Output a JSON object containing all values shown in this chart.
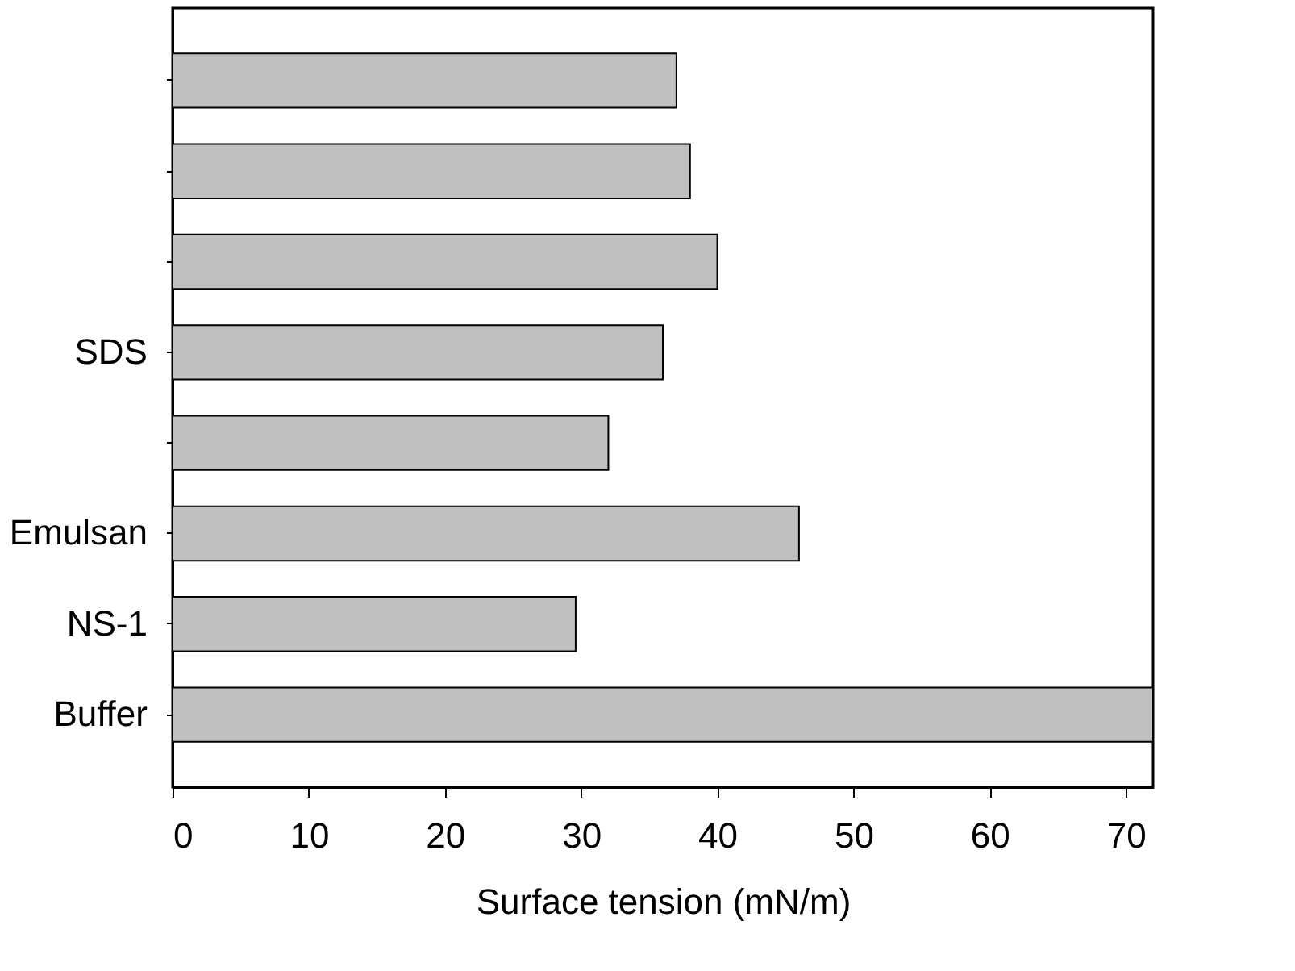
{
  "chart_data": {
    "type": "bar",
    "orientation": "horizontal",
    "xlabel": "Surface tension (mN/m)",
    "categories": [
      null,
      null,
      null,
      "SDS",
      null,
      "Emulsan",
      "NS-1",
      "Buffer"
    ],
    "values": [
      37,
      38,
      40,
      36,
      32,
      46,
      29.6,
      72
    ],
    "color": "#c0c0c0",
    "xlim": [
      0,
      72
    ],
    "xticks": [
      0,
      10,
      20,
      30,
      40,
      50,
      60,
      70
    ],
    "grid": false
  }
}
